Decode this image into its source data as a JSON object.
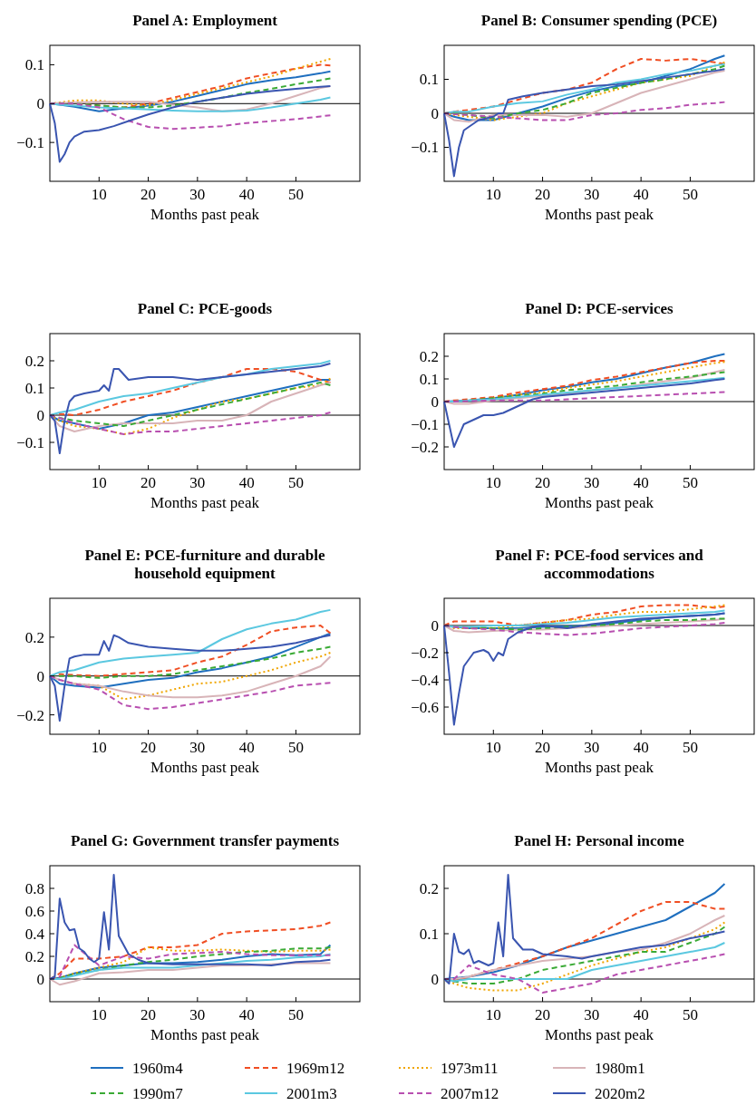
{
  "chart_data": [
    {
      "type": "line",
      "title": "Panel A: Employment",
      "xlabel": "Months past peak",
      "xlim": [
        0,
        63
      ],
      "xticks": [
        10,
        20,
        30,
        40,
        50
      ],
      "ylim": [
        -0.2,
        0.15
      ],
      "yticks": [
        {
          "value": -0.1,
          "label": "−0.1"
        },
        0,
        0.1
      ],
      "ref_lines": [
        {
          "axis": "y",
          "value": 0
        }
      ],
      "x": [
        0,
        2,
        5,
        10,
        15,
        20,
        25,
        30,
        35,
        40,
        45,
        50,
        55,
        57
      ],
      "series": [
        {
          "color": "#1f6fbf",
          "line_style": "solid",
          "values": [
            0,
            -0.003,
            -0.008,
            -0.02,
            -0.012,
            -0.005,
            0.005,
            0.02,
            0.035,
            0.05,
            0.06,
            0.068,
            0.078,
            0.083
          ]
        },
        {
          "color": "#f04e23",
          "line_style": "dashed",
          "values": [
            0,
            0,
            0,
            -0.005,
            -0.01,
            0,
            0.015,
            0.03,
            0.045,
            0.065,
            0.078,
            0.09,
            0.1,
            0.098
          ]
        },
        {
          "color": "#f0a500",
          "line_style": "dotted",
          "values": [
            0,
            0.003,
            0.008,
            0.008,
            0,
            -0.005,
            0.01,
            0.025,
            0.04,
            0.055,
            0.07,
            0.09,
            0.108,
            0.115
          ]
        },
        {
          "color": "#d8b4b8",
          "line_style": "solid",
          "values": [
            0,
            0.002,
            0.003,
            0.005,
            0.005,
            0.005,
            -0.003,
            -0.01,
            -0.02,
            -0.015,
            0,
            0.02,
            0.04,
            0.045
          ]
        },
        {
          "color": "#3aaa35",
          "line_style": "dashed",
          "values": [
            0,
            0,
            0,
            -0.005,
            -0.01,
            -0.01,
            -0.005,
            0.005,
            0.015,
            0.028,
            0.038,
            0.05,
            0.06,
            0.065
          ]
        },
        {
          "color": "#5bc8e0",
          "line_style": "solid",
          "values": [
            0,
            -0.003,
            -0.005,
            -0.01,
            -0.012,
            -0.015,
            -0.018,
            -0.02,
            -0.02,
            -0.018,
            -0.01,
            0,
            0.01,
            0.016
          ]
        },
        {
          "color": "#b84fb0",
          "line_style": "dashed",
          "values": [
            0,
            0,
            0,
            -0.01,
            -0.04,
            -0.06,
            -0.065,
            -0.062,
            -0.058,
            -0.05,
            -0.045,
            -0.04,
            -0.033,
            -0.03
          ]
        },
        {
          "color": "#3a55b0",
          "line_style": "solid",
          "x": [
            0,
            1,
            2,
            3,
            4,
            5,
            7,
            10,
            13,
            16,
            20,
            25,
            30,
            35,
            40,
            45,
            50,
            55,
            57
          ],
          "values": [
            0,
            -0.05,
            -0.15,
            -0.13,
            -0.1,
            -0.085,
            -0.072,
            -0.068,
            -0.058,
            -0.045,
            -0.028,
            -0.01,
            0.005,
            0.015,
            0.025,
            0.032,
            0.038,
            0.043,
            0.045
          ]
        }
      ]
    },
    {
      "type": "line",
      "title": "Panel B: Consumer spending (PCE)",
      "xlabel": "Months past peak",
      "xlim": [
        0,
        63
      ],
      "xticks": [
        10,
        20,
        30,
        40,
        50
      ],
      "ylim": [
        -0.2,
        0.2
      ],
      "yticks": [
        {
          "value": -0.1,
          "label": "−0.1"
        },
        0,
        0.1
      ],
      "ref_lines": [
        {
          "axis": "y",
          "value": 0
        }
      ],
      "x": [
        0,
        2,
        5,
        10,
        15,
        20,
        25,
        30,
        35,
        40,
        45,
        50,
        55,
        57
      ],
      "series": [
        {
          "color": "#1f6fbf",
          "line_style": "solid",
          "values": [
            0,
            -0.01,
            -0.02,
            -0.02,
            0,
            0.02,
            0.045,
            0.065,
            0.08,
            0.09,
            0.11,
            0.13,
            0.16,
            0.17
          ]
        },
        {
          "color": "#f04e23",
          "line_style": "dashed",
          "values": [
            0,
            0.005,
            0.01,
            0.02,
            0.04,
            0.06,
            0.07,
            0.09,
            0.13,
            0.16,
            0.155,
            0.16,
            0.15,
            0.145
          ]
        },
        {
          "color": "#f0a500",
          "line_style": "dotted",
          "values": [
            0,
            -0.005,
            -0.01,
            -0.02,
            -0.01,
            0,
            0.03,
            0.05,
            0.07,
            0.09,
            0.1,
            0.11,
            0.14,
            0.15
          ]
        },
        {
          "color": "#d8b4b8",
          "line_style": "solid",
          "values": [
            0,
            -0.02,
            -0.025,
            -0.005,
            -0.005,
            -0.005,
            -0.01,
            0,
            0.03,
            0.06,
            0.08,
            0.1,
            0.12,
            0.125
          ]
        },
        {
          "color": "#3aaa35",
          "line_style": "dashed",
          "values": [
            0,
            0,
            -0.005,
            -0.015,
            0,
            0.01,
            0.03,
            0.06,
            0.075,
            0.09,
            0.1,
            0.115,
            0.13,
            0.14
          ]
        },
        {
          "color": "#5bc8e0",
          "line_style": "solid",
          "values": [
            0,
            0.005,
            0.005,
            0.02,
            0.03,
            0.035,
            0.055,
            0.07,
            0.09,
            0.1,
            0.115,
            0.125,
            0.14,
            0.145
          ]
        },
        {
          "color": "#b84fb0",
          "line_style": "dashed",
          "values": [
            0,
            -0.003,
            -0.005,
            -0.01,
            -0.015,
            -0.02,
            -0.02,
            -0.005,
            0,
            0.01,
            0.015,
            0.025,
            0.03,
            0.033
          ]
        },
        {
          "color": "#3a55b0",
          "line_style": "solid",
          "x": [
            0,
            1,
            2,
            3,
            4,
            5,
            7,
            10,
            11,
            12,
            13,
            16,
            20,
            25,
            30,
            35,
            40,
            45,
            50,
            55,
            57
          ],
          "values": [
            0,
            -0.08,
            -0.185,
            -0.1,
            -0.05,
            -0.04,
            -0.02,
            -0.01,
            0,
            0,
            0.04,
            0.05,
            0.06,
            0.07,
            0.08,
            0.085,
            0.095,
            0.105,
            0.115,
            0.125,
            0.13
          ]
        }
      ]
    },
    {
      "type": "line",
      "title": "Panel C: PCE-goods",
      "xlabel": "Months past peak",
      "xlim": [
        0,
        63
      ],
      "xticks": [
        10,
        20,
        30,
        40,
        50
      ],
      "ylim": [
        -0.2,
        0.3
      ],
      "yticks": [
        {
          "value": -0.1,
          "label": "−0.1"
        },
        0,
        0.1,
        0.2
      ],
      "ref_lines": [
        {
          "axis": "y",
          "value": 0
        }
      ],
      "x": [
        0,
        2,
        5,
        10,
        15,
        20,
        25,
        30,
        35,
        40,
        45,
        50,
        55,
        57
      ],
      "series": [
        {
          "color": "#1f6fbf",
          "line_style": "solid",
          "values": [
            0,
            -0.02,
            -0.03,
            -0.05,
            -0.03,
            0,
            0.01,
            0.03,
            0.05,
            0.07,
            0.09,
            0.11,
            0.13,
            0.13
          ]
        },
        {
          "color": "#f04e23",
          "line_style": "dashed",
          "values": [
            0,
            0.005,
            0,
            0.02,
            0.05,
            0.07,
            0.09,
            0.12,
            0.14,
            0.17,
            0.17,
            0.16,
            0.13,
            0.12
          ]
        },
        {
          "color": "#f0a500",
          "line_style": "dotted",
          "values": [
            0,
            -0.02,
            -0.04,
            -0.05,
            -0.07,
            -0.05,
            -0.01,
            0.02,
            0.05,
            0.06,
            0.08,
            0.1,
            0.11,
            0.135
          ]
        },
        {
          "color": "#d8b4b8",
          "line_style": "solid",
          "values": [
            0,
            -0.04,
            -0.06,
            -0.04,
            -0.03,
            -0.03,
            -0.03,
            -0.02,
            -0.02,
            0,
            0.05,
            0.08,
            0.11,
            0.12
          ]
        },
        {
          "color": "#3aaa35",
          "line_style": "dashed",
          "values": [
            0,
            -0.01,
            -0.02,
            -0.03,
            -0.04,
            -0.02,
            0,
            0.02,
            0.04,
            0.06,
            0.08,
            0.1,
            0.12,
            0.11
          ]
        },
        {
          "color": "#5bc8e0",
          "line_style": "solid",
          "values": [
            0,
            0.01,
            0.02,
            0.05,
            0.07,
            0.08,
            0.1,
            0.12,
            0.14,
            0.15,
            0.17,
            0.18,
            0.19,
            0.2
          ]
        },
        {
          "color": "#b84fb0",
          "line_style": "dashed",
          "values": [
            0,
            -0.01,
            -0.03,
            -0.05,
            -0.07,
            -0.06,
            -0.06,
            -0.05,
            -0.04,
            -0.03,
            -0.02,
            -0.01,
            0,
            0.01
          ]
        },
        {
          "color": "#3a55b0",
          "line_style": "solid",
          "x": [
            0,
            1,
            2,
            3,
            4,
            5,
            7,
            10,
            11,
            12,
            13,
            14,
            16,
            20,
            25,
            30,
            35,
            40,
            45,
            50,
            55,
            57
          ],
          "values": [
            0,
            -0.02,
            -0.14,
            -0.02,
            0.05,
            0.07,
            0.08,
            0.09,
            0.11,
            0.09,
            0.17,
            0.17,
            0.13,
            0.14,
            0.14,
            0.13,
            0.14,
            0.15,
            0.16,
            0.17,
            0.18,
            0.19
          ]
        }
      ]
    },
    {
      "type": "line",
      "title": "Panel D: PCE-services",
      "xlabel": "Months past peak",
      "xlim": [
        0,
        63
      ],
      "xticks": [
        10,
        20,
        30,
        40,
        50
      ],
      "ylim": [
        -0.3,
        0.3
      ],
      "yticks": [
        {
          "value": -0.2,
          "label": "−0.2"
        },
        {
          "value": -0.1,
          "label": "−0.1"
        },
        0,
        0.1,
        0.2
      ],
      "ref_lines": [
        {
          "axis": "y",
          "value": 0
        }
      ],
      "x": [
        0,
        2,
        5,
        10,
        15,
        20,
        25,
        30,
        35,
        40,
        45,
        50,
        55,
        57
      ],
      "series": [
        {
          "color": "#1f6fbf",
          "line_style": "solid",
          "values": [
            0,
            0.002,
            0.005,
            0.015,
            0.03,
            0.05,
            0.065,
            0.085,
            0.1,
            0.125,
            0.15,
            0.17,
            0.2,
            0.21
          ]
        },
        {
          "color": "#f04e23",
          "line_style": "dashed",
          "values": [
            0,
            0.005,
            0.01,
            0.02,
            0.04,
            0.055,
            0.07,
            0.095,
            0.11,
            0.13,
            0.15,
            0.17,
            0.18,
            0.18
          ]
        },
        {
          "color": "#f0a500",
          "line_style": "dotted",
          "values": [
            null,
            null,
            null,
            0.015,
            0.03,
            0.04,
            0.06,
            0.075,
            0.09,
            0.11,
            0.13,
            0.15,
            0.17,
            0.175
          ]
        },
        {
          "color": "#d8b4b8",
          "line_style": "solid",
          "values": [
            0,
            -0.01,
            -0.01,
            0.005,
            0.015,
            0.025,
            0.035,
            0.05,
            0.06,
            0.075,
            0.09,
            0.105,
            0.13,
            0.14
          ]
        },
        {
          "color": "#3aaa35",
          "line_style": "dashed",
          "values": [
            0,
            0,
            0.005,
            0.015,
            0.025,
            0.035,
            0.05,
            0.06,
            0.07,
            0.085,
            0.1,
            0.11,
            0.125,
            0.13
          ]
        },
        {
          "color": "#5bc8e0",
          "line_style": "solid",
          "values": [
            0,
            0,
            0.005,
            0.01,
            0.02,
            0.03,
            0.04,
            0.05,
            0.06,
            0.07,
            0.08,
            0.09,
            0.1,
            0.105
          ]
        },
        {
          "color": "#b84fb0",
          "line_style": "dashed",
          "values": [
            0,
            0,
            0.002,
            0.005,
            0.005,
            0.005,
            0.01,
            0.015,
            0.02,
            0.025,
            0.03,
            0.035,
            0.04,
            0.042
          ]
        },
        {
          "color": "#3a55b0",
          "line_style": "solid",
          "x": [
            0,
            1,
            2,
            4,
            6,
            8,
            10,
            12,
            14,
            16,
            18,
            20,
            25,
            30,
            35,
            40,
            45,
            50,
            55,
            57
          ],
          "values": [
            0,
            -0.1,
            -0.2,
            -0.1,
            -0.08,
            -0.06,
            -0.06,
            -0.05,
            -0.03,
            -0.01,
            0.01,
            0.02,
            0.03,
            0.04,
            0.05,
            0.06,
            0.07,
            0.08,
            0.095,
            0.1
          ]
        }
      ]
    },
    {
      "type": "line",
      "title": "Panel E: PCE-furniture and durable household equipment",
      "xlabel": "Months past peak",
      "xlim": [
        0,
        63
      ],
      "xticks": [
        10,
        20,
        30,
        40,
        50
      ],
      "ylim": [
        -0.3,
        0.4
      ],
      "yticks": [
        {
          "value": -0.2,
          "label": "−0.2"
        },
        0,
        0.2
      ],
      "ref_lines": [
        {
          "axis": "y",
          "value": 0
        }
      ],
      "x": [
        0,
        2,
        5,
        10,
        15,
        20,
        25,
        30,
        35,
        40,
        45,
        50,
        55,
        57
      ],
      "series": [
        {
          "color": "#1f6fbf",
          "line_style": "solid",
          "values": [
            0,
            -0.04,
            -0.05,
            -0.06,
            -0.04,
            -0.02,
            -0.01,
            0.02,
            0.04,
            0.07,
            0.1,
            0.15,
            0.2,
            0.22
          ]
        },
        {
          "color": "#f04e23",
          "line_style": "dashed",
          "values": [
            0,
            0.01,
            0.005,
            0,
            0.01,
            0.02,
            0.03,
            0.07,
            0.1,
            0.16,
            0.23,
            0.25,
            0.26,
            0.22
          ]
        },
        {
          "color": "#f0a500",
          "line_style": "dotted",
          "values": [
            null,
            null,
            -0.04,
            -0.05,
            -0.12,
            -0.1,
            -0.07,
            -0.04,
            -0.03,
            0,
            0.03,
            0.07,
            0.1,
            0.12
          ]
        },
        {
          "color": "#d8b4b8",
          "line_style": "solid",
          "values": [
            0,
            -0.02,
            -0.04,
            -0.05,
            -0.08,
            -0.1,
            -0.11,
            -0.11,
            -0.1,
            -0.08,
            -0.04,
            0,
            0.05,
            0.1
          ]
        },
        {
          "color": "#3aaa35",
          "line_style": "dashed",
          "values": [
            0,
            0,
            0,
            -0.01,
            0,
            0,
            0.01,
            0.03,
            0.05,
            0.07,
            0.09,
            0.12,
            0.14,
            0.15
          ]
        },
        {
          "color": "#5bc8e0",
          "line_style": "solid",
          "values": [
            0,
            0.02,
            0.03,
            0.07,
            0.09,
            0.1,
            0.11,
            0.12,
            0.19,
            0.24,
            0.27,
            0.29,
            0.33,
            0.34
          ]
        },
        {
          "color": "#b84fb0",
          "line_style": "dashed",
          "values": [
            0,
            -0.02,
            -0.04,
            -0.07,
            -0.15,
            -0.17,
            -0.16,
            -0.14,
            -0.12,
            -0.1,
            -0.08,
            -0.05,
            -0.04,
            -0.035
          ]
        },
        {
          "color": "#3a55b0",
          "line_style": "solid",
          "x": [
            0,
            1,
            2,
            3,
            4,
            5,
            7,
            10,
            11,
            12,
            13,
            14,
            16,
            20,
            25,
            30,
            35,
            40,
            45,
            50,
            55,
            57
          ],
          "values": [
            0,
            -0.05,
            -0.23,
            -0.05,
            0.09,
            0.1,
            0.11,
            0.11,
            0.18,
            0.13,
            0.21,
            0.2,
            0.17,
            0.15,
            0.14,
            0.13,
            0.13,
            0.14,
            0.15,
            0.17,
            0.2,
            0.21
          ]
        }
      ]
    },
    {
      "type": "line",
      "title": "Panel F: PCE-food services and accommodations",
      "xlabel": "Months past peak",
      "xlim": [
        0,
        63
      ],
      "xticks": [
        10,
        20,
        30,
        40,
        50
      ],
      "ylim": [
        -0.8,
        0.2
      ],
      "yticks": [
        {
          "value": -0.6,
          "label": "−0.6"
        },
        {
          "value": -0.4,
          "label": "−0.4"
        },
        {
          "value": -0.2,
          "label": "−0.2"
        },
        0
      ],
      "ref_lines": [
        {
          "axis": "y",
          "value": 0
        }
      ],
      "x": [
        0,
        2,
        5,
        10,
        15,
        20,
        25,
        30,
        35,
        40,
        45,
        50,
        55,
        57
      ],
      "series": [
        {
          "color": "#1f6fbf",
          "line_style": "solid",
          "values": [
            0,
            -0.01,
            -0.02,
            -0.02,
            -0.02,
            -0.01,
            -0.005,
            0,
            0.02,
            0.04,
            0.06,
            0.07,
            0.08,
            0.09
          ]
        },
        {
          "color": "#f04e23",
          "line_style": "dashed",
          "values": [
            0,
            0.03,
            0.03,
            0.03,
            0,
            0.02,
            0.04,
            0.08,
            0.1,
            0.14,
            0.15,
            0.15,
            0.13,
            0.14
          ]
        },
        {
          "color": "#f0a500",
          "line_style": "dotted",
          "values": [
            0,
            -0.02,
            -0.02,
            -0.02,
            0,
            0.02,
            0.04,
            0.05,
            0.08,
            0.1,
            0.1,
            0.12,
            0.14,
            0.15
          ]
        },
        {
          "color": "#d8b4b8",
          "line_style": "solid",
          "values": [
            0,
            -0.04,
            -0.05,
            -0.04,
            -0.03,
            -0.03,
            -0.02,
            -0.01,
            0,
            0.01,
            0.02,
            0.03,
            0.04,
            0.05
          ]
        },
        {
          "color": "#3aaa35",
          "line_style": "dashed",
          "values": [
            0,
            -0.01,
            -0.01,
            -0.02,
            -0.03,
            -0.02,
            -0.01,
            0,
            0.01,
            0.03,
            0.04,
            0.04,
            0.05,
            0.05
          ]
        },
        {
          "color": "#5bc8e0",
          "line_style": "solid",
          "values": [
            0,
            -0.01,
            -0.01,
            0,
            0,
            0.01,
            0.02,
            0.04,
            0.06,
            0.07,
            0.08,
            0.09,
            0.1,
            0.11
          ]
        },
        {
          "color": "#b84fb0",
          "line_style": "dashed",
          "values": [
            0,
            -0.01,
            -0.02,
            -0.03,
            -0.05,
            -0.06,
            -0.07,
            -0.06,
            -0.04,
            -0.02,
            -0.01,
            0,
            0.01,
            0.02
          ]
        },
        {
          "color": "#3a55b0",
          "line_style": "solid",
          "x": [
            0,
            1,
            2,
            3,
            4,
            6,
            8,
            9,
            10,
            11,
            12,
            13,
            15,
            18,
            20,
            25,
            30,
            35,
            40,
            45,
            50,
            55,
            57
          ],
          "values": [
            0,
            -0.35,
            -0.73,
            -0.5,
            -0.3,
            -0.2,
            -0.18,
            -0.2,
            -0.26,
            -0.2,
            -0.22,
            -0.1,
            -0.05,
            -0.01,
            0,
            -0.02,
            0.01,
            0.03,
            0.05,
            0.06,
            0.07,
            0.08,
            0.09
          ]
        }
      ]
    },
    {
      "type": "line",
      "title": "Panel G: Government transfer payments",
      "xlabel": "Months past peak",
      "xlim": [
        0,
        63
      ],
      "xticks": [
        10,
        20,
        30,
        40,
        50
      ],
      "ylim": [
        -0.2,
        1.0
      ],
      "yticks": [
        0,
        0.2,
        0.4,
        0.6,
        0.8
      ],
      "ref_lines": [
        {
          "axis": "y",
          "value": 0
        }
      ],
      "x": [
        0,
        2,
        5,
        10,
        15,
        20,
        25,
        30,
        35,
        40,
        45,
        50,
        55,
        57
      ],
      "series": [
        {
          "color": "#1f6fbf",
          "line_style": "solid",
          "values": [
            0,
            0.01,
            0.05,
            0.1,
            0.12,
            0.14,
            0.14,
            0.15,
            0.17,
            0.2,
            0.22,
            0.21,
            0.22,
            0.3
          ]
        },
        {
          "color": "#f04e23",
          "line_style": "dashed",
          "values": [
            0,
            0.05,
            0.18,
            0.18,
            0.2,
            0.28,
            0.28,
            0.3,
            0.4,
            0.42,
            0.43,
            0.44,
            0.47,
            0.5
          ]
        },
        {
          "color": "#f0a500",
          "line_style": "dotted",
          "values": [
            0,
            0.01,
            0.05,
            0.1,
            0.15,
            0.28,
            0.25,
            0.25,
            0.26,
            0.25,
            0.24,
            0.25,
            0.25,
            0.26
          ]
        },
        {
          "color": "#d8b4b8",
          "line_style": "solid",
          "values": [
            0,
            -0.05,
            -0.02,
            0.05,
            0.06,
            0.08,
            0.08,
            0.1,
            0.12,
            0.12,
            0.13,
            0.14,
            0.14,
            0.14
          ]
        },
        {
          "color": "#3aaa35",
          "line_style": "dashed",
          "values": [
            0,
            0.01,
            0.04,
            0.08,
            0.12,
            0.15,
            0.17,
            0.2,
            0.22,
            0.24,
            0.25,
            0.27,
            0.27,
            0.28
          ]
        },
        {
          "color": "#5bc8e0",
          "line_style": "solid",
          "values": [
            0,
            0,
            0.03,
            0.08,
            0.1,
            0.1,
            0.1,
            0.12,
            0.14,
            0.16,
            0.17,
            0.19,
            0.2,
            0.22
          ]
        },
        {
          "color": "#b84fb0",
          "line_style": "dashed",
          "values": [
            0,
            0.02,
            0.3,
            0.12,
            0.2,
            0.18,
            0.22,
            0.23,
            0.24,
            0.22,
            0.21,
            0.21,
            0.21,
            0.21
          ]
        },
        {
          "color": "#3a55b0",
          "line_style": "solid",
          "x": [
            0,
            1,
            2,
            3,
            4,
            5,
            6,
            7,
            8,
            9,
            10,
            11,
            12,
            13,
            14,
            16,
            18,
            20,
            25,
            30,
            35,
            40,
            45,
            50,
            55,
            57
          ],
          "values": [
            0,
            0.02,
            0.71,
            0.5,
            0.43,
            0.44,
            0.27,
            0.24,
            0.18,
            0.15,
            0.18,
            0.59,
            0.26,
            0.92,
            0.38,
            0.22,
            0.17,
            0.14,
            0.13,
            0.13,
            0.13,
            0.13,
            0.12,
            0.15,
            0.16,
            0.17
          ]
        }
      ]
    },
    {
      "type": "line",
      "title": "Panel H: Personal income",
      "xlabel": "Months past peak",
      "xlim": [
        0,
        63
      ],
      "xticks": [
        10,
        20,
        30,
        40,
        50
      ],
      "ylim": [
        -0.05,
        0.25
      ],
      "yticks": [
        0,
        0.1,
        0.2
      ],
      "ref_lines": [
        {
          "axis": "y",
          "value": 0
        }
      ],
      "legend": "bottom",
      "x": [
        0,
        2,
        5,
        10,
        15,
        20,
        25,
        30,
        35,
        40,
        45,
        50,
        55,
        57
      ],
      "series": [
        {
          "name": "1960m4",
          "color": "#1f6fbf",
          "line_style": "solid",
          "values": [
            0,
            0.002,
            0.005,
            0.015,
            0.03,
            0.05,
            0.07,
            0.085,
            0.1,
            0.115,
            0.13,
            0.16,
            0.19,
            0.21
          ]
        },
        {
          "name": "1969m12",
          "color": "#f04e23",
          "line_style": "dashed",
          "values": [
            0,
            -0.005,
            0.005,
            0.02,
            0.035,
            0.05,
            0.07,
            0.09,
            0.12,
            0.15,
            0.17,
            0.17,
            0.155,
            0.155
          ]
        },
        {
          "name": "1973m11",
          "color": "#f0a500",
          "line_style": "dotted",
          "values": [
            0,
            -0.01,
            -0.02,
            -0.025,
            -0.025,
            -0.01,
            0.01,
            0.03,
            0.045,
            0.06,
            0.07,
            0.09,
            0.11,
            0.125
          ]
        },
        {
          "name": "1980m1",
          "color": "#d8b4b8",
          "line_style": "solid",
          "values": [
            0,
            0,
            0.005,
            0.02,
            0.03,
            0.04,
            0.045,
            0.05,
            0.06,
            0.065,
            0.08,
            0.1,
            0.13,
            0.14
          ]
        },
        {
          "name": "1990m7",
          "color": "#3aaa35",
          "line_style": "dashed",
          "values": [
            0,
            -0.005,
            -0.01,
            -0.01,
            0,
            0.02,
            0.03,
            0.04,
            0.05,
            0.06,
            0.06,
            0.08,
            0.1,
            0.115
          ]
        },
        {
          "name": "2001m3",
          "color": "#5bc8e0",
          "line_style": "solid",
          "values": [
            0,
            -0.005,
            0,
            0,
            0,
            0,
            0,
            0.02,
            0.03,
            0.04,
            0.05,
            0.06,
            0.07,
            0.08
          ]
        },
        {
          "name": "2007m12",
          "color": "#b84fb0",
          "line_style": "dashed",
          "values": [
            0,
            0,
            0.03,
            0.01,
            0,
            -0.03,
            -0.02,
            -0.01,
            0.01,
            0.02,
            0.03,
            0.04,
            0.05,
            0.055
          ]
        },
        {
          "name": "2020m2",
          "color": "#3a55b0",
          "line_style": "solid",
          "x": [
            0,
            1,
            2,
            3,
            4,
            5,
            6,
            7,
            8,
            9,
            10,
            11,
            12,
            13,
            14,
            16,
            18,
            20,
            25,
            28,
            30,
            35,
            40,
            45,
            50,
            55,
            57
          ],
          "values": [
            0,
            -0.01,
            0.1,
            0.06,
            0.055,
            0.065,
            0.035,
            0.04,
            0.035,
            0.03,
            0.035,
            0.125,
            0.05,
            0.23,
            0.09,
            0.065,
            0.065,
            0.055,
            0.05,
            0.045,
            0.05,
            0.06,
            0.07,
            0.075,
            0.09,
            0.1,
            0.105
          ]
        }
      ]
    }
  ]
}
